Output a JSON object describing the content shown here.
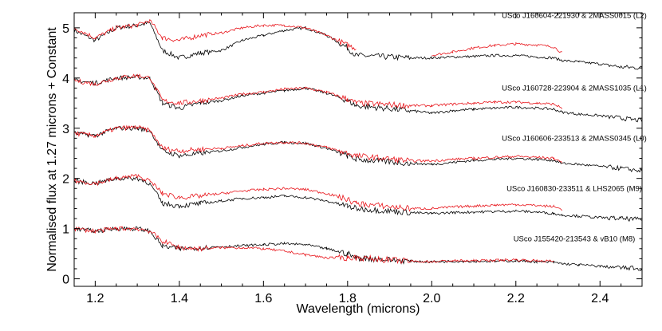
{
  "chart_data": {
    "type": "line",
    "title": "",
    "xlabel": "Wavelength (microns)",
    "ylabel": "Normalised flux at 1.27 microns + Constant",
    "xlim": [
      1.15,
      2.5
    ],
    "ylim": [
      -0.15,
      5.3
    ],
    "x_ticks": [
      1.2,
      1.4,
      1.6,
      1.8,
      2.0,
      2.2,
      2.4
    ],
    "x_tick_labels": [
      "1.2",
      "1.4",
      "1.6",
      "1.8",
      "2.0",
      "2.2",
      "2.4"
    ],
    "y_ticks": [
      0,
      1,
      2,
      3,
      4,
      5
    ],
    "y_tick_labels": [
      "0",
      "1",
      "2",
      "3",
      "4",
      "5"
    ],
    "grid": false,
    "legend": "none",
    "colors": {
      "black_series": "#000000",
      "red_series": "#e8141a"
    },
    "x": [
      1.15,
      1.2,
      1.25,
      1.3,
      1.33,
      1.36,
      1.4,
      1.45,
      1.5,
      1.55,
      1.6,
      1.65,
      1.7,
      1.75,
      1.8,
      1.82,
      1.95,
      2.0,
      2.05,
      2.1,
      2.15,
      2.2,
      2.25,
      2.29,
      2.31,
      2.35,
      2.4,
      2.45,
      2.5
    ],
    "panels": [
      {
        "label": "USco J160604-221930 & 2MASS0015 (L2)",
        "offset": 4,
        "black": [
          4.95,
          4.75,
          5.0,
          5.05,
          5.1,
          4.55,
          4.4,
          4.5,
          4.55,
          4.75,
          4.85,
          4.95,
          5.0,
          4.85,
          4.6,
          4.45,
          4.4,
          4.4,
          4.42,
          4.43,
          4.45,
          4.45,
          4.42,
          4.4,
          4.35,
          4.32,
          4.28,
          4.22,
          4.2
        ],
        "red": [
          5.0,
          4.8,
          5.0,
          5.05,
          5.15,
          4.8,
          4.75,
          4.85,
          4.9,
          5.0,
          5.05,
          5.05,
          5.0,
          4.85,
          4.65,
          4.6,
          null,
          4.45,
          4.52,
          4.6,
          4.65,
          4.68,
          4.66,
          4.62,
          4.5,
          null,
          null,
          null,
          null
        ]
      },
      {
        "label": "USco J160728-223904 & 2MASS1035 (L1)",
        "offset": 3,
        "black": [
          3.95,
          3.9,
          4.0,
          4.02,
          4.0,
          3.5,
          3.4,
          3.5,
          3.55,
          3.65,
          3.7,
          3.75,
          3.8,
          3.7,
          3.55,
          3.45,
          3.35,
          3.3,
          3.35,
          3.38,
          3.4,
          3.42,
          3.4,
          3.38,
          3.32,
          3.28,
          3.25,
          3.2,
          3.15
        ],
        "red": [
          3.95,
          3.88,
          4.0,
          4.05,
          4.0,
          3.55,
          3.5,
          3.55,
          3.6,
          3.68,
          3.72,
          3.78,
          3.8,
          3.72,
          3.58,
          3.5,
          3.45,
          3.45,
          3.48,
          3.5,
          3.52,
          3.52,
          3.5,
          3.48,
          3.4,
          null,
          null,
          null,
          null
        ]
      },
      {
        "label": "USco J160606-233513 & 2MASS0345 (L0)",
        "offset": 2,
        "black": [
          2.9,
          2.85,
          3.0,
          3.0,
          2.95,
          2.55,
          2.45,
          2.5,
          2.55,
          2.62,
          2.68,
          2.72,
          2.7,
          2.6,
          2.45,
          2.38,
          2.3,
          2.28,
          2.32,
          2.36,
          2.38,
          2.4,
          2.38,
          2.36,
          2.3,
          2.28,
          2.24,
          2.2,
          2.15
        ],
        "red": [
          2.9,
          2.85,
          3.0,
          3.02,
          2.95,
          2.6,
          2.55,
          2.58,
          2.6,
          2.65,
          2.7,
          2.72,
          2.7,
          2.62,
          2.5,
          2.45,
          2.35,
          2.35,
          2.38,
          2.4,
          2.42,
          2.44,
          2.42,
          2.4,
          2.32,
          null,
          null,
          null,
          null
        ]
      },
      {
        "label": "USco J160830-233511 & LHS2065 (M9)",
        "offset": 1,
        "black": [
          1.95,
          1.9,
          2.0,
          2.0,
          1.9,
          1.5,
          1.45,
          1.5,
          1.55,
          1.6,
          1.62,
          1.65,
          1.62,
          1.55,
          1.45,
          1.4,
          1.32,
          1.3,
          1.32,
          1.33,
          1.34,
          1.35,
          1.33,
          1.3,
          1.27,
          1.25,
          1.22,
          1.2,
          1.18
        ],
        "red": [
          1.95,
          1.9,
          2.0,
          2.05,
          1.95,
          1.7,
          1.62,
          1.65,
          1.7,
          1.75,
          1.78,
          1.8,
          1.78,
          1.7,
          1.58,
          1.5,
          1.4,
          1.4,
          1.43,
          1.45,
          1.47,
          1.48,
          1.46,
          1.44,
          1.38,
          null,
          null,
          null,
          null
        ]
      },
      {
        "label": "USco J155420-213543 & vB10 (M8)",
        "offset": 0,
        "black": [
          1.0,
          0.95,
          1.0,
          1.0,
          0.95,
          0.65,
          0.6,
          0.62,
          0.64,
          0.66,
          0.68,
          0.7,
          0.68,
          0.6,
          0.5,
          0.42,
          0.35,
          0.34,
          0.35,
          0.35,
          0.35,
          0.36,
          0.34,
          0.33,
          0.3,
          0.28,
          0.25,
          0.22,
          0.2
        ],
        "red": [
          1.0,
          0.95,
          1.0,
          1.0,
          0.95,
          0.75,
          0.62,
          0.6,
          0.62,
          0.62,
          0.6,
          0.55,
          0.48,
          0.42,
          0.42,
          0.42,
          0.35,
          0.34,
          0.36,
          0.36,
          0.37,
          0.38,
          0.36,
          0.35,
          null,
          null,
          null,
          null,
          null
        ]
      }
    ]
  }
}
